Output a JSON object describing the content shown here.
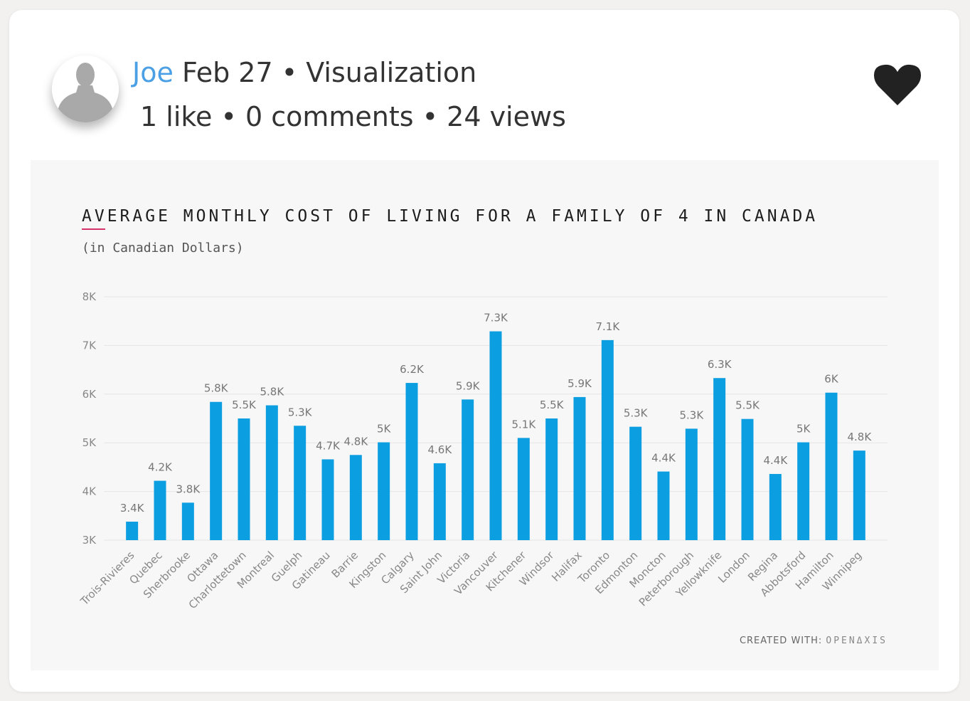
{
  "post": {
    "author": "Joe",
    "date": "Feb 27",
    "sep1": " • ",
    "category": "Visualization",
    "stats": "1 like • 0 comments • 24 views"
  },
  "icons": {
    "avatar": "user-avatar-icon",
    "like": "heart-icon"
  },
  "colors": {
    "author": "#4a9fe5",
    "bar": "#0b9ee1",
    "title_accent": "#d6336c",
    "heart": "#222222"
  },
  "chart_data": {
    "type": "bar",
    "title": "AVERAGE MONTHLY COST OF LIVING FOR A FAMILY OF 4 IN CANADA",
    "subtitle": "(in Canadian Dollars)",
    "categories": [
      "Trois-Rivieres",
      "Quebec",
      "Sherbrooke",
      "Ottawa",
      "Charlottetown",
      "Montreal",
      "Guelph",
      "Gatineau",
      "Barrie",
      "Kingston",
      "Calgary",
      "Saint John",
      "Victoria",
      "Vancouver",
      "Kitchener",
      "Windsor",
      "Halifax",
      "Toronto",
      "Edmonton",
      "Moncton",
      "Peterborough",
      "Yellowknife",
      "London",
      "Regina",
      "Abbotsford",
      "Hamilton",
      "Winnipeg"
    ],
    "values": [
      3380,
      4220,
      3770,
      5840,
      5500,
      5770,
      5350,
      4660,
      4750,
      5010,
      6230,
      4580,
      5890,
      7290,
      5100,
      5500,
      5940,
      7110,
      5330,
      4410,
      5290,
      6330,
      5490,
      4360,
      5010,
      6030,
      4840
    ],
    "data_labels": [
      "3.4K",
      "4.2K",
      "3.8K",
      "5.8K",
      "5.5K",
      "5.8K",
      "5.3K",
      "4.7K",
      "4.8K",
      "5K",
      "6.2K",
      "4.6K",
      "5.9K",
      "7.3K",
      "5.1K",
      "5.5K",
      "5.9K",
      "7.1K",
      "5.3K",
      "4.4K",
      "5.3K",
      "6.3K",
      "5.5K",
      "4.4K",
      "5K",
      "6K",
      "4.8K"
    ],
    "ylim": [
      3000,
      8000
    ],
    "yticks": [
      3000,
      4000,
      5000,
      6000,
      7000,
      8000
    ],
    "ytick_labels": [
      "3K",
      "4K",
      "5K",
      "6K",
      "7K",
      "8K"
    ],
    "grid": true,
    "credit_prefix": "CREATED WITH:",
    "credit_brand": "OPENΔXIS"
  }
}
